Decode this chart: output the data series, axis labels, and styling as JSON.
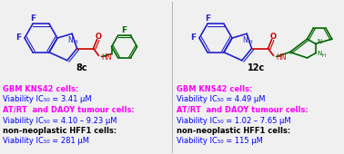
{
  "bg_color": "#f0f0f0",
  "blue": "#2222cc",
  "green": "#006600",
  "red": "#cc0000",
  "magenta": "#ff00ff",
  "black": "#000000",
  "left_label": "8c",
  "right_label": "12c",
  "left_lines": [
    [
      "GBM KNS42 cells:",
      "#ff00ff",
      true
    ],
    [
      "Viability IC₅₀ = 3.41 μM",
      "#0000ff",
      false
    ],
    [
      "AT/RT  and DAOY tumour cells:",
      "#ff00ff",
      true
    ],
    [
      "Viability IC₅₀ = 4.10 – 9.23 μM",
      "#0000ff",
      false
    ],
    [
      "non-neoplastic HFF1 cells:",
      "#000000",
      true
    ],
    [
      "Viability IC₅₀ = 281 μM",
      "#0000ff",
      false
    ]
  ],
  "right_lines": [
    [
      "GBM KNS42 cells:",
      "#ff00ff",
      true
    ],
    [
      "Viability IC₅₀ = 4.49 μM",
      "#0000ff",
      false
    ],
    [
      "AT/RT  and DAOY tumour cells:",
      "#ff00ff",
      true
    ],
    [
      "Viability IC₅₀ = 1.02 – 7.65 μM",
      "#0000ff",
      false
    ],
    [
      "non-neoplastic HFF1 cells:",
      "#000000",
      true
    ],
    [
      "Viability IC₅₀ = 115 μM",
      "#0000ff",
      false
    ]
  ],
  "figsize": [
    3.78,
    1.7
  ],
  "dpi": 100
}
